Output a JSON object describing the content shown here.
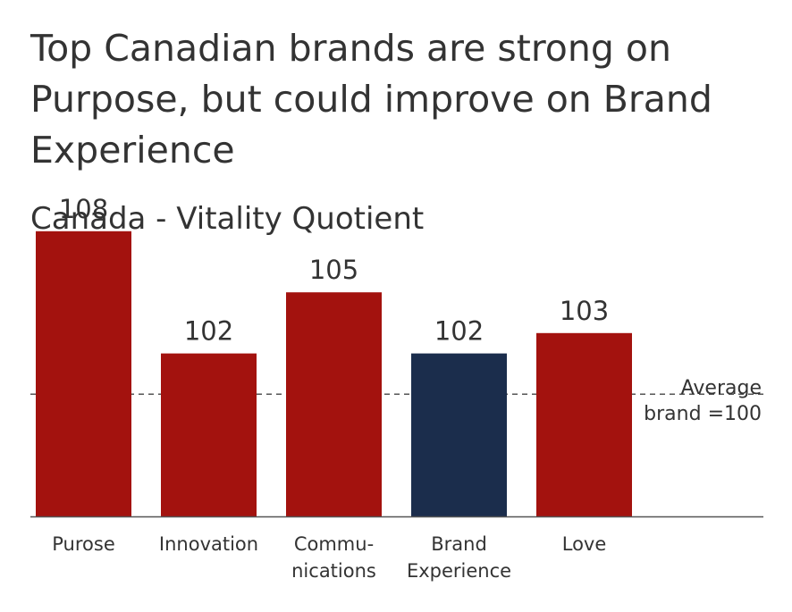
{
  "title": "Top Canadian brands are strong on Purpose, but could improve on Brand Experience",
  "subtitle": "Canada - Vitality Quotient",
  "colors": {
    "bar_default": "#a3120e",
    "bar_highlight": "#1b2d4c",
    "text": "#333333",
    "axis": "#555555"
  },
  "chart_data": {
    "type": "bar",
    "title": "Canada - Vitality Quotient",
    "categories": [
      "Purose",
      "Innovation",
      "Communications",
      "Brand Experience",
      "Love"
    ],
    "category_label_lines": [
      [
        "Purose"
      ],
      [
        "Innovation"
      ],
      [
        "Commu-",
        "nications"
      ],
      [
        "Brand",
        "Experience"
      ],
      [
        "Love"
      ]
    ],
    "values": [
      108,
      102,
      105,
      102,
      103
    ],
    "value_labels": [
      "108",
      "102",
      "105",
      "102",
      "103"
    ],
    "highlight_index": 3,
    "reference_line": {
      "value": 100,
      "label_lines": [
        "Average",
        "brand =100"
      ]
    },
    "ylim": [
      94,
      113
    ],
    "xlabel": "",
    "ylabel": "",
    "grid": false
  }
}
